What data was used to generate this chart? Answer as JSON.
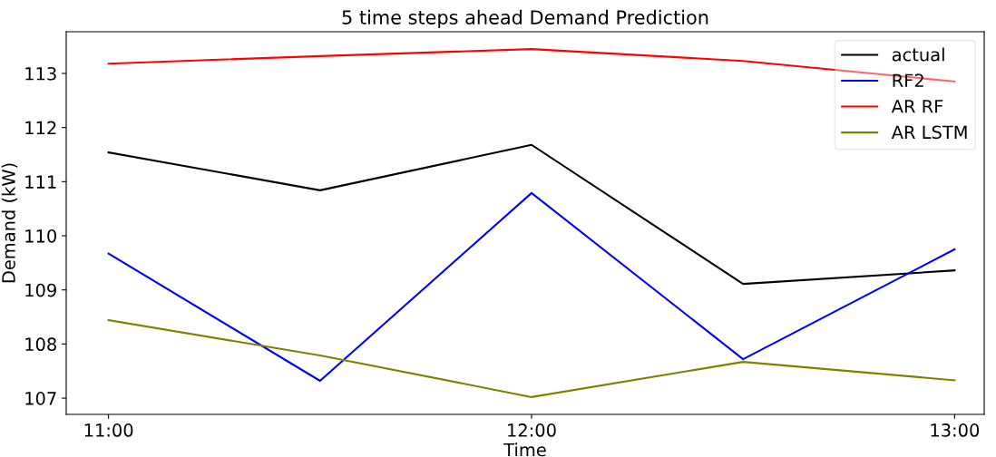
{
  "chart_data": {
    "type": "line",
    "title": "5 time steps ahead Demand Prediction",
    "xlabel": "Time",
    "ylabel": "Demand (kW)",
    "x": [
      11,
      11.5,
      12,
      12.5,
      13
    ],
    "series": [
      {
        "name": "actual",
        "color": "#000000",
        "values": [
          111.54,
          110.84,
          111.68,
          109.11,
          109.36
        ]
      },
      {
        "name": "RF2",
        "color": "#0000ff",
        "values": [
          109.67,
          107.32,
          110.79,
          107.72,
          109.75
        ]
      },
      {
        "name": "AR RF",
        "color": "#ff0000",
        "values": [
          113.18,
          113.32,
          113.45,
          113.23,
          112.85
        ]
      },
      {
        "name": "AR LSTM",
        "color": "#808000",
        "values": [
          108.44,
          107.79,
          107.02,
          107.67,
          107.33
        ]
      }
    ],
    "xlim": [
      10.9,
      13.07
    ],
    "xticks": [
      {
        "value": 11,
        "label": "11:00"
      },
      {
        "value": 12,
        "label": "12:00"
      },
      {
        "value": 13,
        "label": "13:00"
      }
    ],
    "ylim": [
      106.7,
      113.77
    ],
    "yticks": [
      107,
      108,
      109,
      110,
      111,
      112,
      113
    ],
    "legend": "top right",
    "grid": false
  }
}
